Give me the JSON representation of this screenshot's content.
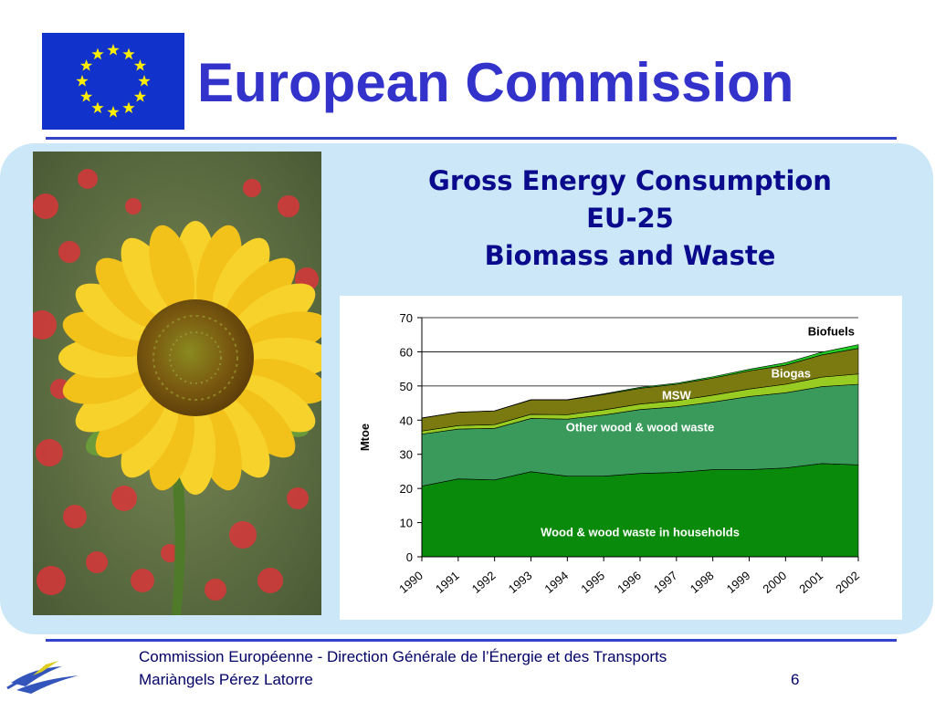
{
  "header": {
    "title": "European Commission"
  },
  "chart_title": {
    "line1": "Gross Energy Consumption",
    "line2": "EU-25",
    "line3": "Biomass and Waste"
  },
  "footer": {
    "line1": "Commission Européenne - Direction Générale de l’Énergie et des Transports",
    "line2": "Mariàngels Pérez Latorre",
    "page": "6"
  },
  "colors": {
    "title": "#3333cc",
    "chart_title": "#0a0a8c",
    "panel": "#cce8f8",
    "flag_blue": "#1133cc",
    "flag_star": "#ffee00"
  },
  "icons": {
    "flag": "eu-flag-icon",
    "logo": "dg-tren-logo-icon",
    "photo": "sunflower-photo"
  },
  "chart_data": {
    "type": "area",
    "stacked": true,
    "x": [
      "1990",
      "1991",
      "1992",
      "1993",
      "1994",
      "1995",
      "1996",
      "1997",
      "1998",
      "1999",
      "2000",
      "2001",
      "2002"
    ],
    "ylabel": "Mtoe",
    "xlabel": "",
    "ylim": [
      0,
      70
    ],
    "yticks": [
      0,
      10,
      20,
      30,
      40,
      50,
      60,
      70
    ],
    "grid": true,
    "series": [
      {
        "name": "Wood & wood waste in households",
        "color": "#0a8a0a",
        "label_color": "#ffffff",
        "values": [
          20.7,
          22.8,
          22.5,
          24.9,
          23.6,
          23.6,
          24.4,
          24.7,
          25.5,
          25.5,
          26.0,
          27.3,
          26.9
        ]
      },
      {
        "name": "Other wood & wood waste",
        "color": "#3a9a5c",
        "label_color": "#ffffff",
        "values": [
          15.2,
          14.6,
          15.1,
          15.6,
          16.7,
          17.9,
          18.7,
          19.2,
          19.8,
          21.4,
          22.0,
          22.5,
          23.6
        ]
      },
      {
        "name": "Biogas",
        "color": "#99cc22",
        "label_color": "#ffffff",
        "values": [
          0.9,
          1.0,
          1.1,
          1.2,
          1.3,
          1.5,
          1.6,
          1.8,
          2.0,
          2.2,
          2.5,
          2.8,
          3.0
        ]
      },
      {
        "name": "MSW",
        "color": "#7a7a10",
        "label_color": "#ffffff",
        "values": [
          3.8,
          3.9,
          4.0,
          4.2,
          4.3,
          4.5,
          4.6,
          4.8,
          5.0,
          5.3,
          5.6,
          6.5,
          7.5
        ]
      },
      {
        "name": "Biofuels",
        "color": "#22cc22",
        "label_color": "#000000",
        "values": [
          0.05,
          0.05,
          0.05,
          0.1,
          0.1,
          0.2,
          0.3,
          0.3,
          0.4,
          0.5,
          0.7,
          0.8,
          1.1
        ]
      }
    ]
  }
}
